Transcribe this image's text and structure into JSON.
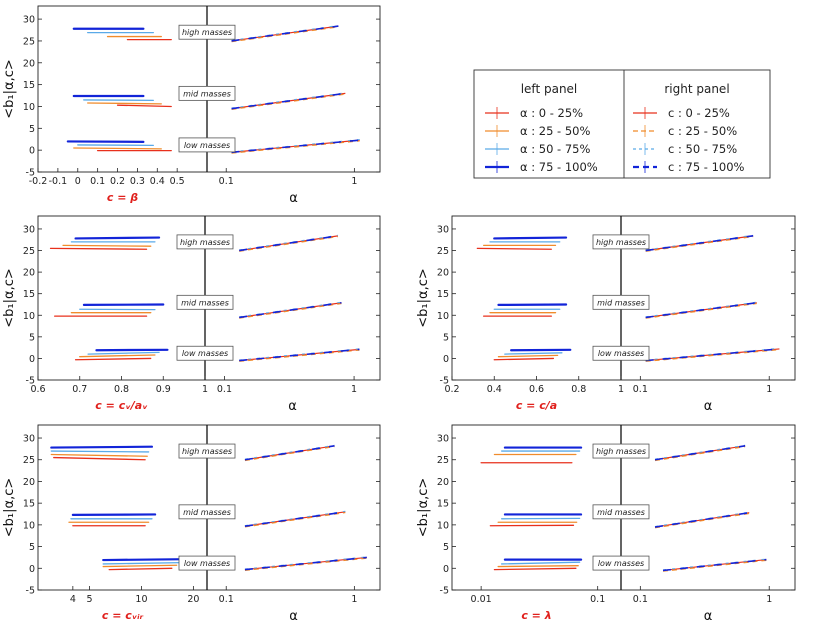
{
  "figure": {
    "ylabel": "<b₁|α,c>",
    "right_xlabel": "α",
    "mass_labels": [
      "high masses",
      "mid masses",
      "low masses"
    ],
    "colors": {
      "q1": "#e8301c",
      "q2": "#f08c2c",
      "q3": "#5aaae8",
      "q4": "#1224d8"
    },
    "yticks": [
      "-5",
      "0",
      "5",
      "10",
      "15",
      "20",
      "25",
      "30"
    ]
  },
  "legend": {
    "left_title": "left panel",
    "right_title": "right panel",
    "left_items": [
      "α : 0 - 25%",
      "α : 25 - 50%",
      "α : 50 - 75%",
      "α : 75 - 100%"
    ],
    "right_items": [
      "c : 0 - 25%",
      "c : 25 - 50%",
      "c : 50 - 75%",
      "c : 75 - 100%"
    ]
  },
  "chart_data": [
    {
      "type": "line",
      "clabel": "c = β",
      "xlabel_left": "c = β",
      "xlabel_right": "α",
      "ylim": [
        -5,
        33
      ],
      "left_xlim": [
        -0.2,
        0.65
      ],
      "left_xticks": [
        "-0.2",
        "-0.1",
        "0",
        "0.1",
        "0.2",
        "0.3",
        "0.4",
        "0.5"
      ],
      "left_xtick_values": [
        -0.2,
        -0.1,
        0,
        0.1,
        0.2,
        0.3,
        0.4,
        0.5
      ],
      "left_series": [
        {
          "level": "high",
          "x": [
            [
              0.25,
              0.47
            ],
            [
              0.15,
              0.42
            ],
            [
              0.05,
              0.38
            ],
            [
              -0.02,
              0.33
            ]
          ],
          "y": [
            [
              25.3,
              25.3
            ],
            [
              26.0,
              26.0
            ],
            [
              26.9,
              26.9
            ],
            [
              27.8,
              27.8
            ]
          ]
        },
        {
          "level": "mid",
          "x": [
            [
              0.2,
              0.47
            ],
            [
              0.05,
              0.42
            ],
            [
              0.03,
              0.38
            ],
            [
              -0.02,
              0.33
            ]
          ],
          "y": [
            [
              10.3,
              10.0
            ],
            [
              10.8,
              10.6
            ],
            [
              11.5,
              11.4
            ],
            [
              12.4,
              12.4
            ]
          ]
        },
        {
          "level": "low",
          "x": [
            [
              0.1,
              0.47
            ],
            [
              -0.02,
              0.42
            ],
            [
              0.0,
              0.38
            ],
            [
              -0.05,
              0.33
            ]
          ],
          "y": [
            [
              -0.1,
              -0.1
            ],
            [
              0.5,
              0.3
            ],
            [
              1.2,
              1.1
            ],
            [
              2.0,
              1.9
            ]
          ]
        }
      ],
      "right_xlim_log10": [
        -1.15,
        0.2
      ],
      "right_xticks": [
        "0.1",
        "1"
      ],
      "right_xtick_values": [
        0.1,
        1
      ],
      "right_series": [
        {
          "level": "high",
          "x": [
            0.11,
            0.75
          ],
          "y": [
            25.0,
            28.4
          ]
        },
        {
          "level": "mid",
          "x": [
            0.11,
            0.85
          ],
          "y": [
            9.5,
            13.0
          ]
        },
        {
          "level": "low",
          "x": [
            0.11,
            1.1
          ],
          "y": [
            -0.5,
            2.3
          ]
        }
      ]
    },
    {
      "type": "line",
      "clabel": "c = cᵥ/aᵥ",
      "xlabel_left": "c = cᵥ/aᵥ",
      "xlabel_right": "α",
      "ylim": [
        -5,
        33
      ],
      "left_xlim": [
        0.6,
        1.0
      ],
      "left_xticks": [
        "0.6",
        "0.7",
        "0.8",
        "0.9",
        "1"
      ],
      "left_xtick_values": [
        0.6,
        0.7,
        0.8,
        0.9,
        1.0
      ],
      "left_series": [
        {
          "level": "high",
          "x": [
            [
              0.63,
              0.86
            ],
            [
              0.66,
              0.87
            ],
            [
              0.68,
              0.88
            ],
            [
              0.69,
              0.89
            ]
          ],
          "y": [
            [
              25.5,
              25.3
            ],
            [
              26.2,
              26.0
            ],
            [
              27.0,
              27.0
            ],
            [
              27.8,
              28.0
            ]
          ]
        },
        {
          "level": "mid",
          "x": [
            [
              0.64,
              0.86
            ],
            [
              0.68,
              0.87
            ],
            [
              0.7,
              0.88
            ],
            [
              0.71,
              0.9
            ]
          ],
          "y": [
            [
              9.8,
              9.8
            ],
            [
              10.6,
              10.6
            ],
            [
              11.4,
              11.3
            ],
            [
              12.4,
              12.5
            ]
          ]
        },
        {
          "level": "low",
          "x": [
            [
              0.69,
              0.87
            ],
            [
              0.7,
              0.88
            ],
            [
              0.72,
              0.89
            ],
            [
              0.74,
              0.91
            ]
          ],
          "y": [
            [
              -0.3,
              0.0
            ],
            [
              0.4,
              0.8
            ],
            [
              1.0,
              1.4
            ],
            [
              1.9,
              2.0
            ]
          ]
        }
      ],
      "right_xlim_log10": [
        -1.15,
        0.2
      ],
      "right_xticks": [
        "0.1",
        "1"
      ],
      "right_xtick_values": [
        0.1,
        1
      ],
      "right_series": [
        {
          "level": "high",
          "x": [
            0.13,
            0.75
          ],
          "y": [
            25.0,
            28.4
          ]
        },
        {
          "level": "mid",
          "x": [
            0.13,
            0.8
          ],
          "y": [
            9.5,
            12.9
          ]
        },
        {
          "level": "low",
          "x": [
            0.13,
            1.1
          ],
          "y": [
            -0.5,
            2.1
          ]
        }
      ]
    },
    {
      "type": "line",
      "clabel": "c = c/a",
      "xlabel_left": "c = c/a",
      "xlabel_right": "α",
      "ylim": [
        -5,
        33
      ],
      "left_xlim": [
        0.2,
        1.0
      ],
      "left_xticks": [
        "0.2",
        "0.4",
        "0.6",
        "0.8",
        "1"
      ],
      "left_xtick_values": [
        0.2,
        0.4,
        0.6,
        0.8,
        1.0
      ],
      "left_series": [
        {
          "level": "high",
          "x": [
            [
              0.32,
              0.67
            ],
            [
              0.35,
              0.69
            ],
            [
              0.38,
              0.71
            ],
            [
              0.4,
              0.74
            ]
          ],
          "y": [
            [
              25.5,
              25.3
            ],
            [
              26.2,
              26.2
            ],
            [
              27.0,
              27.0
            ],
            [
              27.8,
              28.0
            ]
          ]
        },
        {
          "level": "mid",
          "x": [
            [
              0.35,
              0.67
            ],
            [
              0.38,
              0.69
            ],
            [
              0.4,
              0.71
            ],
            [
              0.42,
              0.74
            ]
          ],
          "y": [
            [
              9.8,
              9.8
            ],
            [
              10.6,
              10.6
            ],
            [
              11.4,
              11.4
            ],
            [
              12.4,
              12.5
            ]
          ]
        },
        {
          "level": "low",
          "x": [
            [
              0.4,
              0.68
            ],
            [
              0.42,
              0.7
            ],
            [
              0.45,
              0.72
            ],
            [
              0.48,
              0.76
            ]
          ],
          "y": [
            [
              -0.3,
              0.0
            ],
            [
              0.4,
              0.7
            ],
            [
              1.0,
              1.3
            ],
            [
              1.9,
              2.0
            ]
          ]
        }
      ],
      "right_xlim_log10": [
        -1.15,
        0.2
      ],
      "right_xticks": [
        "0.1",
        "1"
      ],
      "right_xtick_values": [
        0.1,
        1
      ],
      "right_series": [
        {
          "level": "high",
          "x": [
            0.11,
            0.75
          ],
          "y": [
            25.0,
            28.4
          ]
        },
        {
          "level": "mid",
          "x": [
            0.11,
            0.8
          ],
          "y": [
            9.5,
            12.9
          ]
        },
        {
          "level": "low",
          "x": [
            0.11,
            1.2
          ],
          "y": [
            -0.5,
            2.2
          ]
        }
      ]
    },
    {
      "type": "line",
      "clabel": "c = cᵥᵢᵣ",
      "xlabel_left": "c = cᵥᵢᵣ",
      "xlabel_right": "α",
      "ylim": [
        -5,
        33
      ],
      "left_xlim_log10": [
        0.4,
        1.38
      ],
      "left_xticks": [
        "4",
        "5",
        "10",
        "20"
      ],
      "left_xtick_values": [
        4,
        5,
        10,
        20
      ],
      "left_xlog": true,
      "left_series": [
        {
          "level": "high",
          "x": [
            [
              3.1,
              10.5
            ],
            [
              3.0,
              10.8
            ],
            [
              3.0,
              11.0
            ],
            [
              3.0,
              11.5
            ]
          ],
          "y": [
            [
              25.5,
              25.0
            ],
            [
              26.2,
              25.8
            ],
            [
              27.0,
              26.8
            ],
            [
              27.8,
              28.0
            ]
          ]
        },
        {
          "level": "mid",
          "x": [
            [
              4.0,
              10.5
            ],
            [
              3.8,
              11.0
            ],
            [
              3.9,
              11.5
            ],
            [
              4.0,
              12.0
            ]
          ],
          "y": [
            [
              9.8,
              9.8
            ],
            [
              10.6,
              10.6
            ],
            [
              11.4,
              11.4
            ],
            [
              12.3,
              12.4
            ]
          ]
        },
        {
          "level": "low",
          "x": [
            [
              6.5,
              15.0
            ],
            [
              6.0,
              16.0
            ],
            [
              6.0,
              17.0
            ],
            [
              6.0,
              18.0
            ]
          ],
          "y": [
            [
              -0.3,
              0.0
            ],
            [
              0.4,
              0.7
            ],
            [
              1.0,
              1.3
            ],
            [
              1.9,
              2.1
            ]
          ]
        }
      ],
      "right_xlim_log10": [
        -1.15,
        0.2
      ],
      "right_xticks": [
        "0.1",
        "1"
      ],
      "right_xtick_values": [
        0.1,
        1
      ],
      "right_series": [
        {
          "level": "high",
          "x": [
            0.14,
            0.7
          ],
          "y": [
            25.0,
            28.2
          ]
        },
        {
          "level": "mid",
          "x": [
            0.14,
            0.85
          ],
          "y": [
            9.7,
            13.0
          ]
        },
        {
          "level": "low",
          "x": [
            0.14,
            1.25
          ],
          "y": [
            -0.3,
            2.5
          ]
        }
      ]
    },
    {
      "type": "line",
      "clabel": "c = λ",
      "xlabel_left": "c = λ",
      "xlabel_right": "α",
      "ylim": [
        -5,
        33
      ],
      "left_xlim_log10": [
        -2.25,
        -0.8
      ],
      "left_xticks": [
        "0.01",
        "0.1"
      ],
      "left_xtick_values": [
        0.01,
        0.1
      ],
      "left_xlog": true,
      "left_series": [
        {
          "level": "high",
          "x": [
            [
              0.01,
              0.06
            ],
            [
              0.013,
              0.065
            ],
            [
              0.015,
              0.07
            ],
            [
              0.016,
              0.072
            ]
          ],
          "y": [
            [
              24.3,
              24.3
            ],
            [
              26.2,
              26.2
            ],
            [
              27.0,
              27.0
            ],
            [
              27.8,
              27.8
            ]
          ]
        },
        {
          "level": "mid",
          "x": [
            [
              0.012,
              0.062
            ],
            [
              0.014,
              0.066
            ],
            [
              0.015,
              0.07
            ],
            [
              0.016,
              0.072
            ]
          ],
          "y": [
            [
              9.8,
              9.9
            ],
            [
              10.6,
              10.6
            ],
            [
              11.4,
              11.5
            ],
            [
              12.4,
              12.4
            ]
          ]
        },
        {
          "level": "low",
          "x": [
            [
              0.013,
              0.065
            ],
            [
              0.014,
              0.068
            ],
            [
              0.015,
              0.07
            ],
            [
              0.016,
              0.072
            ]
          ],
          "y": [
            [
              -0.3,
              0.0
            ],
            [
              0.4,
              0.6
            ],
            [
              1.0,
              1.4
            ],
            [
              2.0,
              2.0
            ]
          ]
        }
      ],
      "right_xlim_log10": [
        -1.15,
        0.2
      ],
      "right_xticks": [
        "0.1",
        "1"
      ],
      "right_xtick_values": [
        0.1,
        1
      ],
      "right_series": [
        {
          "level": "high",
          "x": [
            0.13,
            0.65
          ],
          "y": [
            25.0,
            28.2
          ]
        },
        {
          "level": "mid",
          "x": [
            0.13,
            0.7
          ],
          "y": [
            9.5,
            12.8
          ]
        },
        {
          "level": "low",
          "x": [
            0.15,
            0.95
          ],
          "y": [
            -0.5,
            2.0
          ]
        }
      ]
    }
  ]
}
